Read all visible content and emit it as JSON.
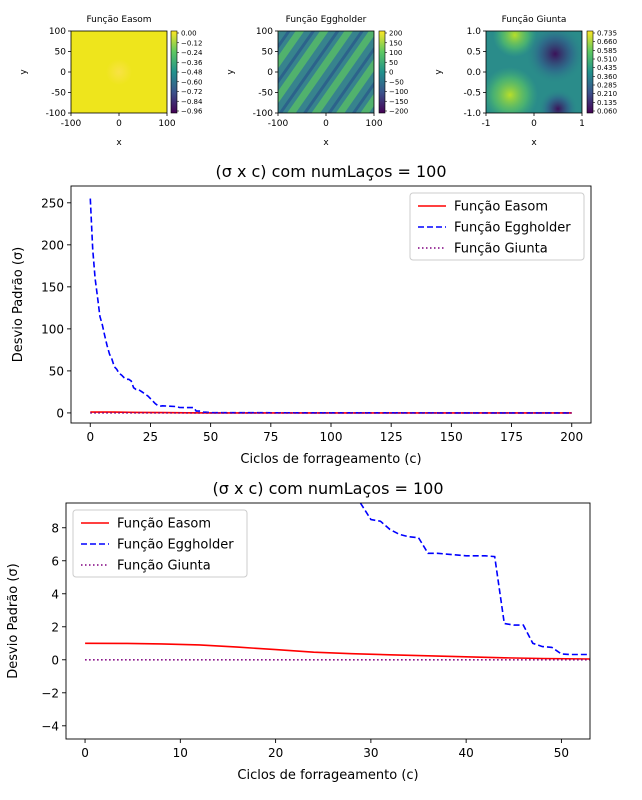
{
  "chart_data": [
    {
      "type": "heatmap",
      "title": "Função Easom",
      "xlabel": "x",
      "ylabel": "y",
      "xlim": [
        -100,
        100
      ],
      "ylim": [
        -100,
        100
      ],
      "xticks": [
        "-100",
        "0",
        "100"
      ],
      "yticks": [
        "100",
        "50",
        "0",
        "-50",
        "-100"
      ],
      "colorbar_ticks": [
        "0.00",
        "−0.12",
        "−0.24",
        "−0.36",
        "−0.48",
        "−0.60",
        "−0.72",
        "−0.84",
        "−0.96"
      ],
      "colormap": "viridis"
    },
    {
      "type": "heatmap",
      "title": "Função Eggholder",
      "xlabel": "x",
      "ylabel": "y",
      "xlim": [
        -100,
        100
      ],
      "ylim": [
        -100,
        100
      ],
      "xticks": [
        "-100",
        "0",
        "100"
      ],
      "yticks": [
        "100",
        "50",
        "0",
        "-50",
        "-100"
      ],
      "colorbar_ticks": [
        "200",
        "150",
        "100",
        "50",
        "0",
        "−50",
        "−100",
        "−150",
        "−200"
      ],
      "colormap": "viridis"
    },
    {
      "type": "heatmap",
      "title": "Função Giunta",
      "xlabel": "x",
      "ylabel": "y",
      "xlim": [
        -1,
        1
      ],
      "ylim": [
        -1,
        1
      ],
      "xticks": [
        "-1",
        "0",
        "1"
      ],
      "yticks": [
        "1.0",
        "0.5",
        "0.0",
        "-0.5",
        "-1.0"
      ],
      "colorbar_ticks": [
        "0.735",
        "0.660",
        "0.585",
        "0.510",
        "0.435",
        "0.360",
        "0.285",
        "0.210",
        "0.135",
        "0.060"
      ],
      "colormap": "viridis"
    },
    {
      "type": "line",
      "title": "(σ x c) com numLaços = 100",
      "xlabel": "Ciclos de forrageamento (c)",
      "ylabel": "Desvio Padrão (σ)",
      "xlim": [
        -8,
        208
      ],
      "ylim": [
        -12,
        270
      ],
      "xticks": [
        "0",
        "25",
        "50",
        "75",
        "100",
        "125",
        "150",
        "175",
        "200"
      ],
      "yticks": [
        "0",
        "50",
        "100",
        "150",
        "200",
        "250"
      ],
      "legend_position": "top-right",
      "series": [
        {
          "name": "Função Easom",
          "color": "#ff0000",
          "style": "solid",
          "x": [
            0,
            10,
            20,
            30,
            40,
            50,
            200
          ],
          "y": [
            1.0,
            0.93,
            0.6,
            0.32,
            0.18,
            0.05,
            0.0
          ]
        },
        {
          "name": "Função Eggholder",
          "color": "#0000ff",
          "style": "dashed",
          "x": [
            0,
            1,
            2,
            3,
            4,
            5,
            6,
            7,
            8,
            9,
            10,
            11,
            12,
            13,
            14,
            15,
            16,
            17,
            18,
            19,
            20,
            21,
            22,
            23,
            24,
            25,
            26,
            27,
            28,
            29,
            30,
            36,
            37,
            43,
            44,
            46,
            47,
            48,
            50,
            52,
            60,
            100,
            150,
            200
          ],
          "y": [
            255,
            195,
            160,
            138,
            115,
            105,
            92,
            80,
            70,
            64,
            55,
            52,
            47,
            45,
            42,
            40,
            40,
            38,
            30,
            28,
            28,
            26,
            24,
            22,
            20,
            17,
            14,
            11,
            9,
            8,
            8.5,
            7.5,
            6.5,
            6.3,
            2.2,
            2.1,
            1.0,
            0.8,
            0.35,
            0.3,
            0.2,
            0.1,
            0.05,
            0.0
          ]
        },
        {
          "name": "Função Giunta",
          "color": "#800080",
          "style": "dotted",
          "x": [
            0,
            50,
            100,
            150,
            200
          ],
          "y": [
            0.0,
            0.0,
            0.0,
            0.0,
            0.0
          ]
        }
      ]
    },
    {
      "type": "line",
      "title": "(σ x c) com numLaços = 100",
      "xlabel": "Ciclos de forrageamento (c)",
      "ylabel": "Desvio Padrão (σ)",
      "xlim": [
        -2,
        53
      ],
      "ylim": [
        -4.8,
        9.5
      ],
      "xticks": [
        "0",
        "10",
        "20",
        "30",
        "40",
        "50"
      ],
      "yticks": [
        "−4",
        "−2",
        "0",
        "2",
        "4",
        "6",
        "8"
      ],
      "legend_position": "top-left",
      "series": [
        {
          "name": "Função Easom",
          "color": "#ff0000",
          "style": "solid",
          "x": [
            0,
            4,
            8,
            12,
            16,
            20,
            24,
            28,
            32,
            36,
            40,
            44,
            48,
            53
          ],
          "y": [
            1.0,
            0.99,
            0.96,
            0.9,
            0.77,
            0.62,
            0.46,
            0.37,
            0.3,
            0.24,
            0.18,
            0.12,
            0.08,
            0.05
          ]
        },
        {
          "name": "Função Eggholder",
          "color": "#0000ff",
          "style": "dashed",
          "x": [
            28.9,
            30,
            31,
            32,
            33,
            34,
            35,
            36,
            37,
            40,
            42,
            43,
            44,
            45,
            46,
            47,
            48,
            49,
            50,
            51,
            53
          ],
          "y": [
            9.5,
            8.5,
            8.4,
            7.9,
            7.6,
            7.45,
            7.4,
            6.45,
            6.45,
            6.3,
            6.3,
            6.25,
            2.2,
            2.1,
            2.1,
            1.0,
            0.8,
            0.75,
            0.35,
            0.32,
            0.32
          ]
        },
        {
          "name": "Função Giunta",
          "color": "#800080",
          "style": "dotted",
          "x": [
            0,
            10,
            20,
            30,
            40,
            53
          ],
          "y": [
            0.0,
            0.0,
            0.0,
            0.0,
            0.0,
            0.0
          ]
        }
      ]
    }
  ]
}
